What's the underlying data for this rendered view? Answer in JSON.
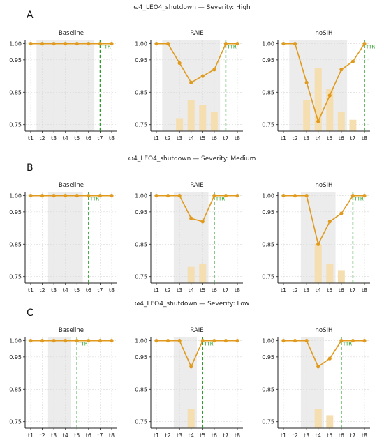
{
  "colors": {
    "line": "#e09a1e",
    "bar": "#f5deb0",
    "shade": "#ececec",
    "ttr": "#2a9d2a",
    "grid": "#d8d8d8"
  },
  "chart_data": [
    {
      "type": "line",
      "row": "A",
      "row_title": "ω4_LEO4_shutdown — Severity: High",
      "title": "Baseline",
      "categories": [
        "t1",
        "t2",
        "t3",
        "t4",
        "t5",
        "t6",
        "t7",
        "t8"
      ],
      "y_ticks": [
        "1.00",
        "0.95",
        "0.85",
        "0.75"
      ],
      "y_tick_values": [
        1.0,
        0.95,
        0.85,
        0.75
      ],
      "ylim": [
        0.73,
        1.01
      ],
      "series": [
        {
          "values": [
            1.0,
            1.0,
            1.0,
            1.0,
            1.0,
            1.0,
            1.0,
            1.0
          ]
        }
      ],
      "bars": [
        null,
        null,
        null,
        null,
        null,
        null,
        null,
        null
      ],
      "shade_range": [
        "t1.5",
        "t6.5"
      ],
      "shade": [
        1.5,
        6.5
      ],
      "ttr_label": "TTR",
      "ttr_at": 7
    },
    {
      "type": "line",
      "row": "A",
      "title": "RAIE",
      "categories": [
        "t1",
        "t2",
        "t3",
        "t4",
        "t5",
        "t6",
        "t7",
        "t8"
      ],
      "y_ticks": [
        "1.00",
        "0.95",
        "0.85",
        "0.75"
      ],
      "y_tick_values": [
        1.0,
        0.95,
        0.85,
        0.75
      ],
      "ylim": [
        0.73,
        1.01
      ],
      "series": [
        {
          "values": [
            1.0,
            1.0,
            0.94,
            0.88,
            0.9,
            0.92,
            1.0,
            1.0
          ]
        }
      ],
      "bars": [
        null,
        null,
        0.77,
        0.825,
        0.81,
        0.79,
        null,
        null
      ],
      "shade": [
        1.5,
        6.5
      ],
      "ttr_label": "TTR",
      "ttr_at": 7
    },
    {
      "type": "line",
      "row": "A",
      "title": "noSIH",
      "categories": [
        "t1",
        "t2",
        "t3",
        "t4",
        "t5",
        "t6",
        "t7",
        "t8"
      ],
      "y_ticks": [
        "1.00",
        "0.95",
        "0.85",
        "0.75"
      ],
      "y_tick_values": [
        1.0,
        0.95,
        0.85,
        0.75
      ],
      "ylim": [
        0.73,
        1.01
      ],
      "series": [
        {
          "values": [
            1.0,
            1.0,
            0.88,
            0.76,
            0.84,
            0.92,
            0.945,
            1.0
          ]
        }
      ],
      "bars": [
        null,
        null,
        0.825,
        0.925,
        0.86,
        0.79,
        0.765,
        null
      ],
      "shade": [
        1.5,
        6.5
      ],
      "ttr_label": "TTR",
      "ttr_at": 8
    },
    {
      "type": "line",
      "row": "B",
      "row_title": "ω4_LEO4_shutdown — Severity: Medium",
      "title": "Baseline",
      "categories": [
        "t1",
        "t2",
        "t3",
        "t4",
        "t5",
        "t6",
        "t7",
        "t8"
      ],
      "y_ticks": [
        "1.00",
        "0.95",
        "0.85",
        "0.75"
      ],
      "y_tick_values": [
        1.0,
        0.95,
        0.85,
        0.75
      ],
      "ylim": [
        0.73,
        1.01
      ],
      "series": [
        {
          "values": [
            1.0,
            1.0,
            1.0,
            1.0,
            1.0,
            1.0,
            1.0,
            1.0
          ]
        }
      ],
      "bars": [
        null,
        null,
        null,
        null,
        null,
        null,
        null,
        null
      ],
      "shade": [
        2.5,
        5.5
      ],
      "ttr_label": "TTR",
      "ttr_at": 6
    },
    {
      "type": "line",
      "row": "B",
      "title": "RAIE",
      "categories": [
        "t1",
        "t2",
        "t3",
        "t4",
        "t5",
        "t6",
        "t7",
        "t8"
      ],
      "y_ticks": [
        "1.00",
        "0.95",
        "0.85",
        "0.75"
      ],
      "y_tick_values": [
        1.0,
        0.95,
        0.85,
        0.75
      ],
      "ylim": [
        0.73,
        1.01
      ],
      "series": [
        {
          "values": [
            1.0,
            1.0,
            1.0,
            0.93,
            0.92,
            1.0,
            1.0,
            1.0
          ]
        }
      ],
      "bars": [
        null,
        null,
        null,
        0.78,
        0.79,
        null,
        null,
        null
      ],
      "shade": [
        2.5,
        5.5
      ],
      "ttr_label": "TTR",
      "ttr_at": 6
    },
    {
      "type": "line",
      "row": "B",
      "title": "noSIH",
      "categories": [
        "t1",
        "t2",
        "t3",
        "t4",
        "t5",
        "t6",
        "t7",
        "t8"
      ],
      "y_ticks": [
        "1.00",
        "0.95",
        "0.85",
        "0.75"
      ],
      "y_tick_values": [
        1.0,
        0.95,
        0.85,
        0.75
      ],
      "ylim": [
        0.73,
        1.01
      ],
      "series": [
        {
          "values": [
            1.0,
            1.0,
            1.0,
            0.85,
            0.92,
            0.945,
            1.0,
            1.0
          ]
        }
      ],
      "bars": [
        null,
        null,
        null,
        0.85,
        0.79,
        0.77,
        null,
        null
      ],
      "shade": [
        2.5,
        5.5
      ],
      "ttr_label": "TTR",
      "ttr_at": 7
    },
    {
      "type": "line",
      "row": "C",
      "row_title": "ω4_LEO4_shutdown — Severity: Low",
      "title": "Baseline",
      "categories": [
        "t1",
        "t2",
        "t3",
        "t4",
        "t5",
        "t6",
        "t7",
        "t8"
      ],
      "y_ticks": [
        "1.00",
        "0.95",
        "0.85",
        "0.75"
      ],
      "y_tick_values": [
        1.0,
        0.95,
        0.85,
        0.75
      ],
      "ylim": [
        0.73,
        1.01
      ],
      "series": [
        {
          "values": [
            1.0,
            1.0,
            1.0,
            1.0,
            1.0,
            1.0,
            1.0,
            1.0
          ]
        }
      ],
      "bars": [
        null,
        null,
        null,
        null,
        null,
        null,
        null,
        null
      ],
      "shade": [
        2.5,
        4.5
      ],
      "ttr_label": "TTR",
      "ttr_at": 5
    },
    {
      "type": "line",
      "row": "C",
      "title": "RAIE",
      "categories": [
        "t1",
        "t2",
        "t3",
        "t4",
        "t5",
        "t6",
        "t7",
        "t8"
      ],
      "y_ticks": [
        "1.00",
        "0.95",
        "0.85",
        "0.75"
      ],
      "y_tick_values": [
        1.0,
        0.95,
        0.85,
        0.75
      ],
      "ylim": [
        0.73,
        1.01
      ],
      "series": [
        {
          "values": [
            1.0,
            1.0,
            1.0,
            0.92,
            1.0,
            1.0,
            1.0,
            1.0
          ]
        }
      ],
      "bars": [
        null,
        null,
        null,
        0.79,
        null,
        null,
        null,
        null
      ],
      "shade": [
        2.5,
        4.5
      ],
      "ttr_label": "TTR",
      "ttr_at": 5
    },
    {
      "type": "line",
      "row": "C",
      "title": "noSIH",
      "categories": [
        "t1",
        "t2",
        "t3",
        "t4",
        "t5",
        "t6",
        "t7",
        "t8"
      ],
      "y_ticks": [
        "1.00",
        "0.95",
        "0.85",
        "0.75"
      ],
      "y_tick_values": [
        1.0,
        0.95,
        0.85,
        0.75
      ],
      "ylim": [
        0.73,
        1.01
      ],
      "series": [
        {
          "values": [
            1.0,
            1.0,
            1.0,
            0.92,
            0.945,
            1.0,
            1.0,
            1.0
          ]
        }
      ],
      "bars": [
        null,
        null,
        null,
        0.79,
        0.77,
        null,
        null,
        null
      ],
      "shade": [
        2.5,
        4.5
      ],
      "ttr_label": "TTR",
      "ttr_at": 6
    }
  ]
}
